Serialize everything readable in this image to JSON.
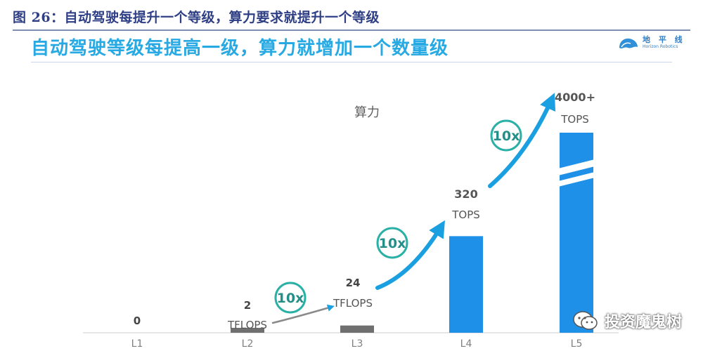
{
  "figure_caption": "图 26：自动驾驶每提升一个等级，算力要求就提升一个等级",
  "subtitle": "自动驾驶等级每提高一级，算力就增加一个数量级",
  "brand": {
    "name": "地 平 线",
    "sub": "Horizon Robotics",
    "icon": "horizon-logo-icon"
  },
  "watermark": {
    "text": "投资魔鬼树",
    "icon": "wechat-icon"
  },
  "colors": {
    "bar": "#1e90e8",
    "bar_small": "#6f6f6f",
    "arrow": "#1a9fe0",
    "caption": "#2f3f86",
    "subtitle": "#27a9e3"
  },
  "chart_data": {
    "type": "bar",
    "title": "",
    "series_label": "算力",
    "categories": [
      "L1",
      "L2",
      "L3",
      "L4",
      "L5"
    ],
    "values": [
      0,
      2,
      24,
      320,
      4000
    ],
    "data_labels": [
      {
        "value": "0",
        "unit": ""
      },
      {
        "value": "2",
        "unit": "TFLOPS"
      },
      {
        "value": "24",
        "unit": "TFLOPS"
      },
      {
        "value": "320",
        "unit": "TOPS"
      },
      {
        "value": "4000+",
        "unit": "TOPS"
      }
    ],
    "axis_break": "L5",
    "growth_annotations": [
      {
        "from": "L2",
        "to": "L3",
        "label": "10x"
      },
      {
        "from": "L3",
        "to": "L4",
        "label": "10x"
      },
      {
        "from": "L4",
        "to": "L5",
        "label": "10x"
      }
    ]
  }
}
